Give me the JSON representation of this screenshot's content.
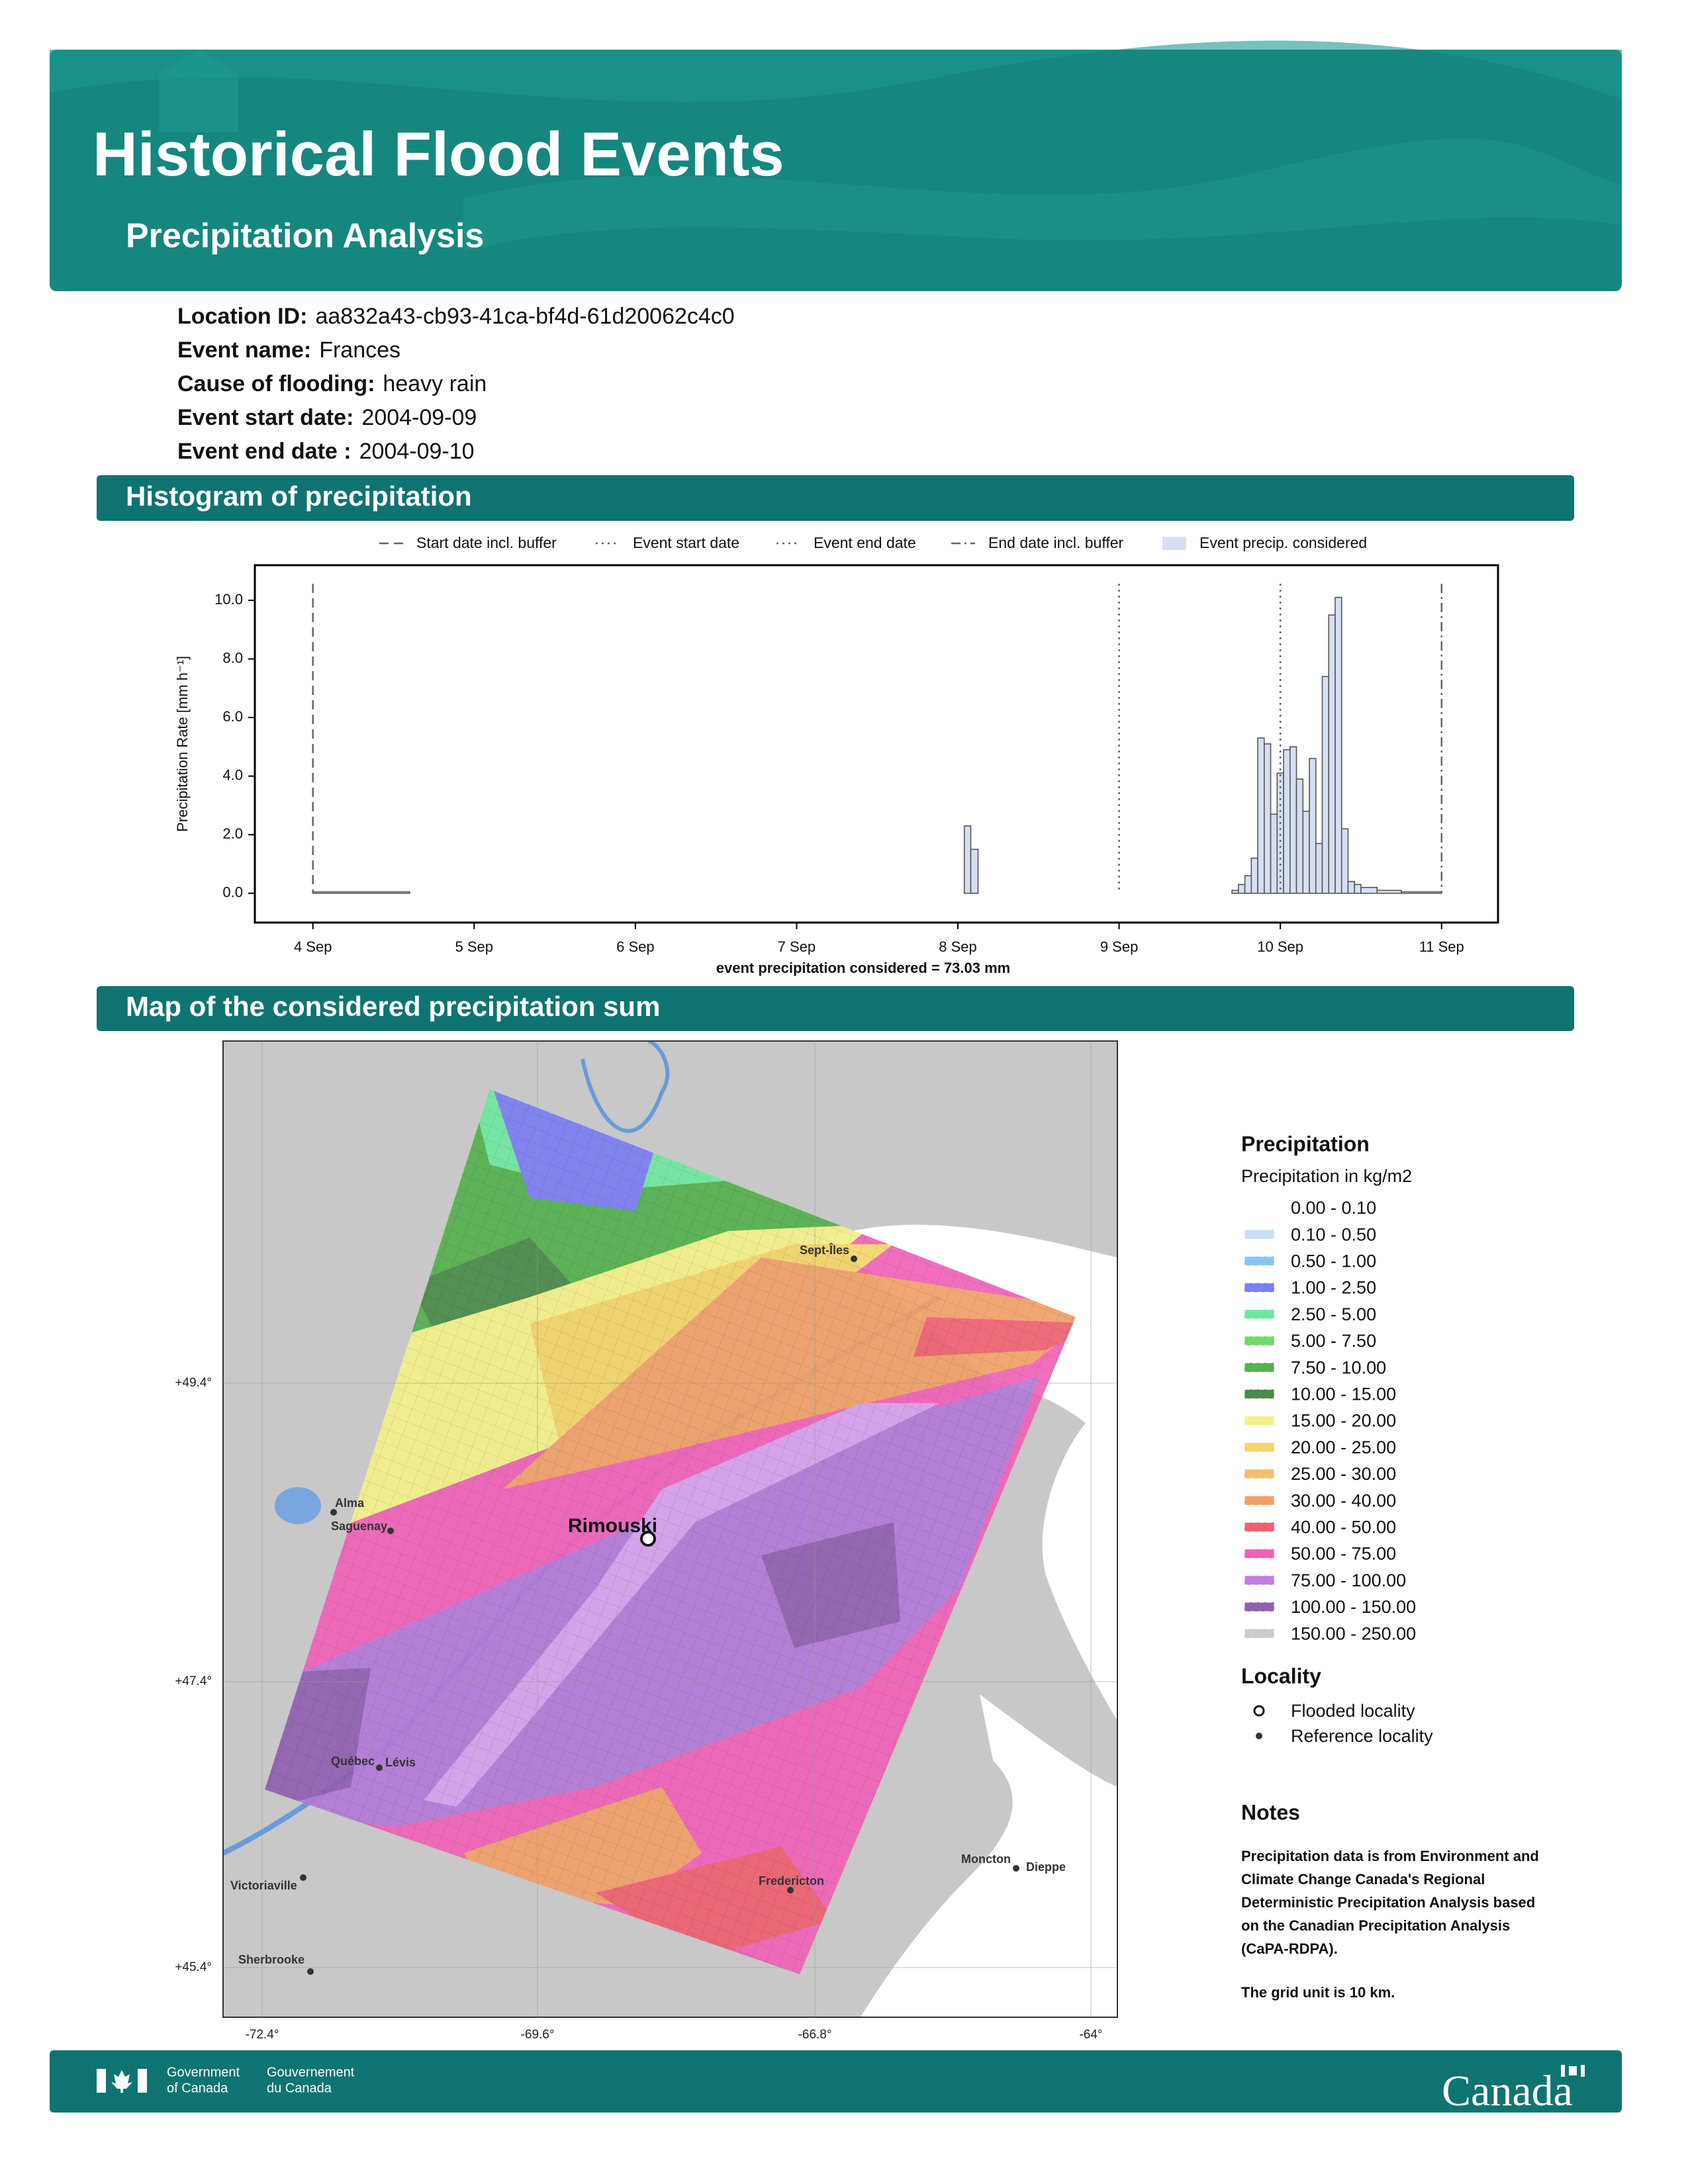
{
  "header": {
    "title": "Historical Flood Events",
    "subtitle": "Precipitation Analysis"
  },
  "details": [
    {
      "label": "Location ID:",
      "value": "aa832a43-cb93-41ca-bf4d-61d20062c4c0"
    },
    {
      "label": "Event name:",
      "value": "Frances"
    },
    {
      "label": "Cause of flooding:",
      "value": "heavy rain"
    },
    {
      "label": "Event start date:",
      "value": "2004-09-09"
    },
    {
      "label": "Event end date :",
      "value": "2004-09-10"
    }
  ],
  "histogram_section": {
    "title": "Histogram of precipitation"
  },
  "chart_data": {
    "type": "histogram",
    "ylabel": "Precipitation Rate [mm h⁻¹]",
    "xlabel": "event precipitation considered = 73.03 mm",
    "bins": [
      4.0,
      4.6,
      8.04,
      8.08,
      8.125,
      9.7,
      9.74,
      9.78,
      9.82,
      9.86,
      9.9,
      9.94,
      9.98,
      10.02,
      10.06,
      10.1,
      10.14,
      10.18,
      10.22,
      10.26,
      10.3,
      10.34,
      10.38,
      10.42,
      10.46,
      10.5,
      10.6,
      10.75,
      11.0
    ],
    "series": [
      {
        "name": "Event precip. considered",
        "color": "#d5dff2",
        "values": [
          0.05,
          0,
          2.3,
          1.5,
          0,
          0.1,
          0.3,
          0.6,
          1.2,
          5.3,
          5.1,
          2.7,
          4.1,
          4.9,
          5.0,
          3.9,
          2.8,
          4.6,
          1.7,
          7.4,
          9.5,
          10.1,
          2.2,
          0.4,
          0.3,
          0.2,
          0.1,
          0.05
        ]
      }
    ],
    "reference_lines": [
      {
        "name": "Start date incl. buffer",
        "x": 4,
        "style": "dashed"
      },
      {
        "name": "Event start date",
        "x": 9,
        "style": "dotted"
      },
      {
        "name": "Event end date",
        "x": 10,
        "style": "dotted"
      },
      {
        "name": "End date incl. buffer",
        "x": 11,
        "style": "dashdot"
      }
    ],
    "xlim": [
      3.64,
      11.35
    ],
    "ylim": [
      -1.0,
      11.2
    ],
    "xticks": [
      {
        "value": 4,
        "label": "4 Sep"
      },
      {
        "value": 5,
        "label": "5 Sep"
      },
      {
        "value": 6,
        "label": "6 Sep"
      },
      {
        "value": 7,
        "label": "7 Sep"
      },
      {
        "value": 8,
        "label": "8 Sep"
      },
      {
        "value": 9,
        "label": "9 Sep"
      },
      {
        "value": 10,
        "label": "10 Sep"
      },
      {
        "value": 11,
        "label": "11 Sep"
      }
    ],
    "yticks": [
      {
        "value": 0,
        "label": "0.0"
      },
      {
        "value": 2,
        "label": "2.0"
      },
      {
        "value": 4,
        "label": "4.0"
      },
      {
        "value": 6,
        "label": "6.0"
      },
      {
        "value": 8,
        "label": "8.0"
      },
      {
        "value": 10,
        "label": "10.0"
      }
    ]
  },
  "map_section": {
    "title": "Map of the considered precipitation sum"
  },
  "map": {
    "lat_ticks": [
      "+49.4°",
      "+47.4°",
      "+45.4°"
    ],
    "lon_ticks": [
      "-72.4°",
      "-69.6°",
      "-66.8°",
      "-64°"
    ],
    "places": [
      "Sept-Îles",
      "Alma",
      "Saguenay",
      "Rimouski",
      "Québec",
      "Lévis",
      "Victoriaville",
      "Sherbrooke",
      "Fredericton",
      "Moncton",
      "Dieppe"
    ]
  },
  "legend": {
    "title": "Precipitation",
    "subtitle": "Precipitation in kg/m2",
    "classes": [
      {
        "label": "0.00 - 0.10",
        "color": "#ffffff"
      },
      {
        "label": "0.10 - 0.50",
        "color": "#c6dff5"
      },
      {
        "label": "0.50 - 1.00",
        "color": "#8cc4f0"
      },
      {
        "label": "1.00 - 2.50",
        "color": "#7b7ef0"
      },
      {
        "label": "2.50 - 5.00",
        "color": "#6fe8a0"
      },
      {
        "label": "5.00 - 7.50",
        "color": "#72d86f"
      },
      {
        "label": "7.50 - 10.00",
        "color": "#55b04f"
      },
      {
        "label": "10.00 - 15.00",
        "color": "#4a8a4a"
      },
      {
        "label": "15.00 - 20.00",
        "color": "#f4f08a"
      },
      {
        "label": "20.00 - 25.00",
        "color": "#f3d56a"
      },
      {
        "label": "25.00 - 30.00",
        "color": "#f0c070"
      },
      {
        "label": "30.00 - 40.00",
        "color": "#f0a068"
      },
      {
        "label": "40.00 - 50.00",
        "color": "#ee6070"
      },
      {
        "label": "50.00 - 75.00",
        "color": "#f062b8"
      },
      {
        "label": "75.00 - 100.00",
        "color": "#c080e0"
      },
      {
        "label": "100.00 - 150.00",
        "color": "#9060b0"
      },
      {
        "label": "150.00 - 250.00",
        "color": "#cccccc"
      }
    ],
    "locality_title": "Locality",
    "localities": [
      "Flooded locality",
      "Reference locality"
    ]
  },
  "notes": {
    "title": "Notes",
    "lines": [
      "Precipitation data is from Environment and",
      "Climate Change Canada's Regional",
      "Deterministic Precipitation Analysis based",
      "on the Canadian Precipitation Analysis",
      "(CaPA-RDPA)."
    ],
    "grid_note": "The grid unit is 10 km."
  },
  "footer": {
    "government_en": [
      "Government",
      "of Canada"
    ],
    "government_fr": [
      "Gouvernement",
      "du Canada"
    ],
    "wordmark": "Canada"
  }
}
